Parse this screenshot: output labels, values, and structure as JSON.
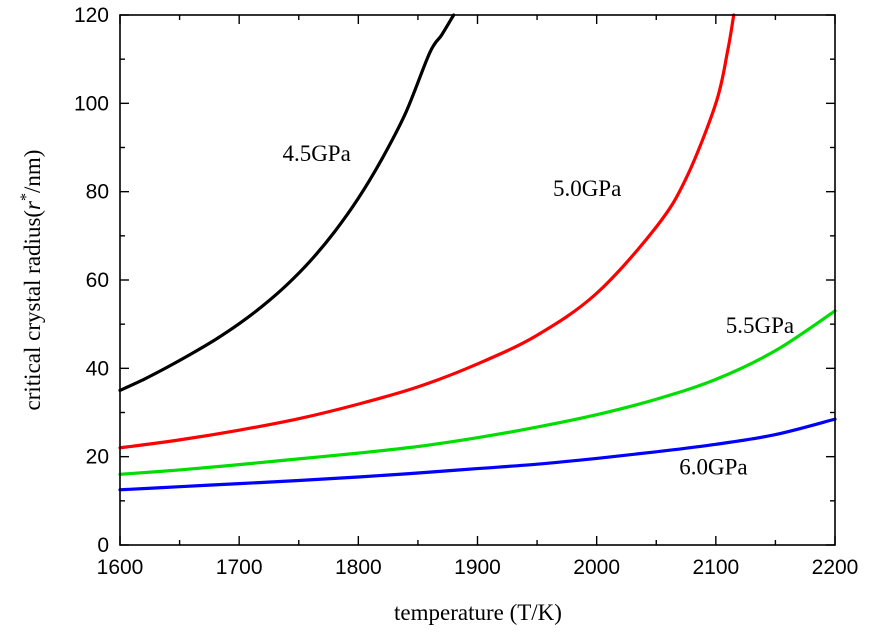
{
  "chart_data": {
    "type": "line",
    "xlabel": "temperature (T/K)",
    "ylabel": {
      "prefix": "critical crystal radius(",
      "symbol": "r",
      "superscript": "*",
      "suffix": "/nm)"
    },
    "xlim": [
      1600,
      2200
    ],
    "ylim": [
      0,
      120
    ],
    "x_ticks": [
      1600,
      1700,
      1800,
      1900,
      2000,
      2100,
      2200
    ],
    "y_ticks": [
      0,
      20,
      40,
      60,
      80,
      100,
      120
    ],
    "x_minor_ticks": [
      1650,
      1750,
      1850,
      1950,
      2050,
      2150
    ],
    "y_minor_ticks": [
      10,
      30,
      50,
      70,
      90,
      110
    ],
    "grid": false,
    "legend": "none",
    "series": [
      {
        "name": "4.5GPa",
        "color": "#000000",
        "x": [
          1600,
          1620,
          1640,
          1660,
          1680,
          1700,
          1720,
          1740,
          1760,
          1780,
          1800,
          1820,
          1840,
          1860,
          1870,
          1880
        ],
        "y": [
          35,
          37.5,
          40.3,
          43.3,
          46.5,
          50.1,
          54.2,
          58.9,
          64.4,
          70.9,
          78.5,
          87.5,
          98,
          111.5,
          115.5,
          120
        ]
      },
      {
        "name": "5.0GPa",
        "color": "#ff0000",
        "x": [
          1600,
          1650,
          1700,
          1750,
          1800,
          1850,
          1900,
          1950,
          2000,
          2050,
          2075,
          2100,
          2110,
          2115
        ],
        "y": [
          22,
          23.8,
          26,
          28.6,
          31.9,
          35.8,
          41,
          47.5,
          57,
          72,
          83,
          100,
          112,
          120
        ]
      },
      {
        "name": "5.5GPa",
        "color": "#00dd00",
        "x": [
          1600,
          1650,
          1700,
          1750,
          1800,
          1850,
          1900,
          1950,
          2000,
          2050,
          2100,
          2150,
          2200
        ],
        "y": [
          16,
          17,
          18.2,
          19.5,
          20.8,
          22.3,
          24.3,
          26.7,
          29.5,
          33,
          37.5,
          44,
          53
        ]
      },
      {
        "name": "6.0GPa",
        "color": "#0000ff",
        "x": [
          1600,
          1650,
          1700,
          1750,
          1800,
          1850,
          1900,
          1950,
          2000,
          2050,
          2100,
          2150,
          2200
        ],
        "y": [
          12.5,
          13.2,
          13.9,
          14.6,
          15.4,
          16.3,
          17.3,
          18.3,
          19.6,
          21.1,
          22.8,
          25,
          28.5
        ]
      }
    ],
    "annotations": [
      {
        "text": "4.5GPa",
        "x": 1765,
        "y": 87
      },
      {
        "text": "5.0GPa",
        "x": 1992,
        "y": 79
      },
      {
        "text": "5.5GPa",
        "x": 2137,
        "y": 48
      },
      {
        "text": "6.0GPa",
        "x": 2098,
        "y": 16
      }
    ]
  }
}
